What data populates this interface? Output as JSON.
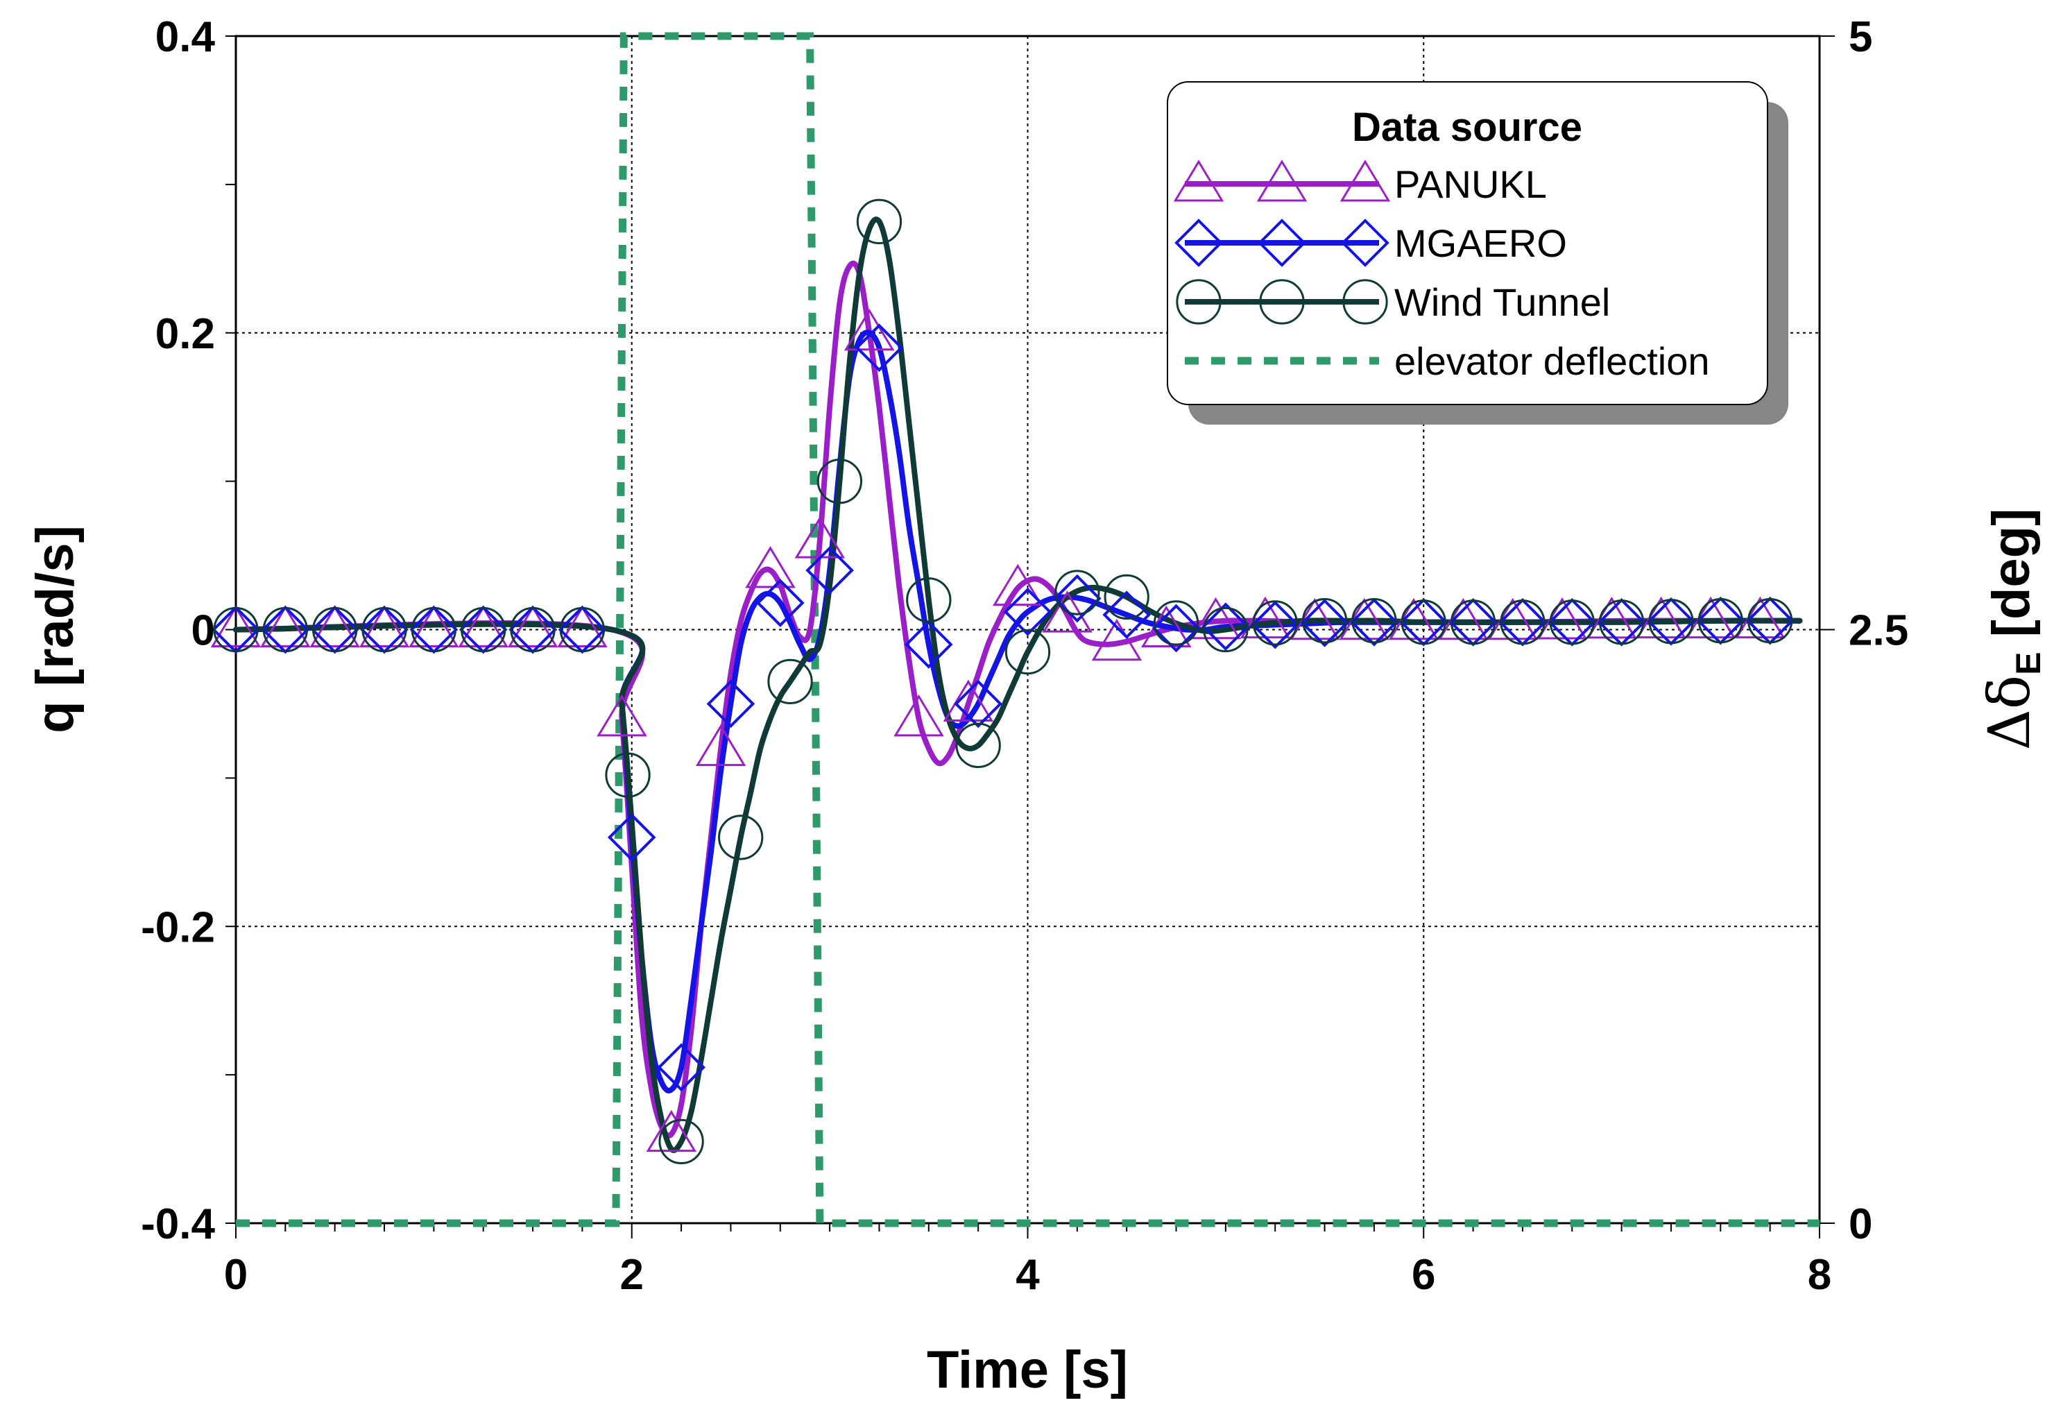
{
  "chart_data": {
    "type": "line",
    "xlabel": "Time [s]",
    "ylabel": "q [rad/s]",
    "y2label": {
      "prefix": "Δδ",
      "subscript": "E",
      "unit": " [deg]"
    },
    "xlim": [
      0,
      8
    ],
    "ylim": [
      -0.4,
      0.4
    ],
    "y2lim": [
      0,
      5
    ],
    "xticks": [
      0,
      2,
      4,
      6,
      8
    ],
    "xtick_labels": [
      "0",
      "2",
      "4",
      "6",
      "8"
    ],
    "yticks": [
      -0.4,
      -0.2,
      0,
      0.2,
      0.4
    ],
    "ytick_labels": [
      "-0.4",
      "-0.2",
      "0",
      "0.2",
      "0.4"
    ],
    "y2ticks": [
      0,
      2.5,
      5
    ],
    "y2tick_labels": [
      "0",
      "2.5",
      "5"
    ],
    "grid": true,
    "legend": {
      "title": "Data source",
      "position": "top-right",
      "entries": [
        "PANUKL",
        "MGAERO",
        "Wind Tunnel",
        "elevator deflection"
      ]
    },
    "series": [
      {
        "name": "PANUKL",
        "color": "#9b1fc8",
        "marker": "triangle",
        "axis": "left",
        "x": [
          0,
          1.9,
          1.95,
          2.0,
          2.05,
          2.1,
          2.15,
          2.2,
          2.25,
          2.3,
          2.35,
          2.4,
          2.45,
          2.5,
          2.55,
          2.6,
          2.65,
          2.7,
          2.75,
          2.8,
          2.85,
          2.9,
          2.95,
          3.0,
          3.05,
          3.1,
          3.15,
          3.2,
          3.25,
          3.3,
          3.35,
          3.4,
          3.45,
          3.5,
          3.55,
          3.6,
          3.65,
          3.7,
          3.75,
          3.8,
          3.85,
          3.9,
          3.95,
          4.0,
          4.05,
          4.1,
          4.15,
          4.2,
          4.25,
          4.3,
          4.4,
          4.5,
          4.6,
          4.7,
          4.8,
          4.9,
          5.0,
          5.1,
          5.2,
          5.4,
          5.6,
          5.8,
          6.0,
          6.5,
          7.0,
          7.5,
          7.9
        ],
        "y": [
          0,
          0,
          -0.06,
          -0.16,
          -0.26,
          -0.31,
          -0.335,
          -0.34,
          -0.32,
          -0.27,
          -0.2,
          -0.14,
          -0.08,
          -0.03,
          0.005,
          0.025,
          0.038,
          0.04,
          0.03,
          0.01,
          -0.005,
          0.0,
          0.06,
          0.15,
          0.22,
          0.245,
          0.24,
          0.2,
          0.15,
          0.09,
          0.03,
          -0.02,
          -0.06,
          -0.08,
          -0.09,
          -0.085,
          -0.07,
          -0.05,
          -0.03,
          -0.01,
          0.005,
          0.018,
          0.028,
          0.033,
          0.034,
          0.03,
          0.022,
          0.01,
          -0.002,
          -0.008,
          -0.01,
          -0.008,
          -0.004,
          0.0,
          0.003,
          0.005,
          0.006,
          0.006,
          0.006,
          0.005,
          0.005,
          0.005,
          0.005,
          0.005,
          0.006,
          0.006,
          0.006
        ],
        "marker_x": [
          0,
          0.25,
          0.5,
          0.75,
          1.0,
          1.25,
          1.5,
          1.75,
          1.95,
          2.2,
          2.45,
          2.7,
          2.95,
          3.2,
          3.45,
          3.7,
          3.95,
          4.2,
          4.45,
          4.7,
          4.95,
          5.2,
          5.45,
          5.7,
          5.95,
          6.2,
          6.45,
          6.7,
          6.95,
          7.2,
          7.45,
          7.7
        ]
      },
      {
        "name": "MGAERO",
        "color": "#1414e6",
        "marker": "diamond",
        "axis": "left",
        "x": [
          0,
          1.9,
          1.95,
          2.0,
          2.05,
          2.1,
          2.15,
          2.2,
          2.25,
          2.3,
          2.35,
          2.4,
          2.45,
          2.5,
          2.55,
          2.6,
          2.65,
          2.7,
          2.75,
          2.8,
          2.85,
          2.9,
          2.95,
          3.0,
          3.05,
          3.1,
          3.15,
          3.2,
          3.25,
          3.3,
          3.35,
          3.4,
          3.45,
          3.5,
          3.55,
          3.6,
          3.65,
          3.7,
          3.75,
          3.8,
          3.85,
          3.9,
          3.95,
          4.0,
          4.1,
          4.2,
          4.3,
          4.4,
          4.5,
          4.6,
          4.7,
          4.8,
          4.9,
          5.0,
          5.2,
          5.4,
          5.6,
          5.8,
          6.0,
          6.5,
          7.0,
          7.5,
          7.9
        ],
        "y": [
          0,
          0,
          -0.05,
          -0.14,
          -0.22,
          -0.28,
          -0.305,
          -0.31,
          -0.295,
          -0.25,
          -0.2,
          -0.15,
          -0.095,
          -0.05,
          -0.01,
          0.012,
          0.022,
          0.024,
          0.018,
          0.005,
          -0.01,
          -0.02,
          -0.005,
          0.04,
          0.11,
          0.17,
          0.195,
          0.2,
          0.19,
          0.16,
          0.12,
          0.07,
          0.03,
          -0.01,
          -0.04,
          -0.06,
          -0.065,
          -0.06,
          -0.05,
          -0.035,
          -0.02,
          -0.005,
          0.005,
          0.012,
          0.02,
          0.022,
          0.02,
          0.015,
          0.01,
          0.005,
          0.002,
          0.0,
          0.0,
          0.002,
          0.003,
          0.004,
          0.005,
          0.005,
          0.005,
          0.005,
          0.005,
          0.006,
          0.006
        ],
        "marker_x": [
          0,
          0.25,
          0.5,
          0.75,
          1.0,
          1.25,
          1.5,
          1.75,
          2.0,
          2.25,
          2.5,
          2.75,
          3.0,
          3.25,
          3.5,
          3.75,
          4.0,
          4.25,
          4.5,
          4.75,
          5.0,
          5.25,
          5.5,
          5.75,
          6.0,
          6.25,
          6.5,
          6.75,
          7.0,
          7.25,
          7.5,
          7.75
        ]
      },
      {
        "name": "Wind Tunnel",
        "color": "#0f3a36",
        "marker": "circle",
        "axis": "left",
        "x": [
          0,
          1.9,
          1.95,
          2.0,
          2.05,
          2.1,
          2.15,
          2.2,
          2.25,
          2.3,
          2.35,
          2.4,
          2.45,
          2.5,
          2.55,
          2.6,
          2.65,
          2.7,
          2.75,
          2.8,
          2.85,
          2.9,
          2.95,
          3.0,
          3.05,
          3.1,
          3.15,
          3.2,
          3.25,
          3.3,
          3.35,
          3.4,
          3.45,
          3.5,
          3.55,
          3.6,
          3.65,
          3.7,
          3.75,
          3.8,
          3.85,
          3.9,
          3.95,
          4.0,
          4.1,
          4.2,
          4.3,
          4.4,
          4.5,
          4.6,
          4.7,
          4.8,
          4.9,
          5.0,
          5.2,
          5.4,
          5.6,
          5.8,
          6.0,
          6.5,
          7.0,
          7.5,
          7.9
        ],
        "y": [
          0,
          0,
          -0.05,
          -0.13,
          -0.22,
          -0.29,
          -0.33,
          -0.35,
          -0.345,
          -0.325,
          -0.29,
          -0.25,
          -0.21,
          -0.175,
          -0.14,
          -0.11,
          -0.08,
          -0.06,
          -0.045,
          -0.035,
          -0.025,
          -0.015,
          -0.01,
          0.03,
          0.1,
          0.18,
          0.24,
          0.27,
          0.275,
          0.25,
          0.2,
          0.14,
          0.08,
          0.02,
          -0.03,
          -0.06,
          -0.075,
          -0.08,
          -0.078,
          -0.07,
          -0.06,
          -0.045,
          -0.03,
          -0.015,
          0.008,
          0.022,
          0.028,
          0.027,
          0.022,
          0.014,
          0.007,
          0.002,
          -0.001,
          0.0,
          0.004,
          0.006,
          0.006,
          0.006,
          0.005,
          0.005,
          0.005,
          0.006,
          0.006
        ],
        "marker_x": [
          0,
          0.25,
          0.5,
          0.75,
          1.0,
          1.25,
          1.5,
          1.75,
          1.98,
          2.25,
          2.55,
          2.8,
          3.05,
          3.25,
          3.5,
          3.75,
          4.0,
          4.25,
          4.5,
          4.75,
          5.0,
          5.25,
          5.5,
          5.75,
          6.0,
          6.25,
          6.5,
          6.75,
          7.0,
          7.25,
          7.5,
          7.75
        ]
      },
      {
        "name": "elevator deflection",
        "color": "#2e9a6a",
        "marker": "none",
        "axis": "right",
        "dashed": true,
        "x": [
          0,
          1.92,
          1.96,
          2.9,
          2.95,
          8
        ],
        "y": [
          0,
          0,
          5,
          5,
          0,
          0
        ]
      }
    ]
  }
}
